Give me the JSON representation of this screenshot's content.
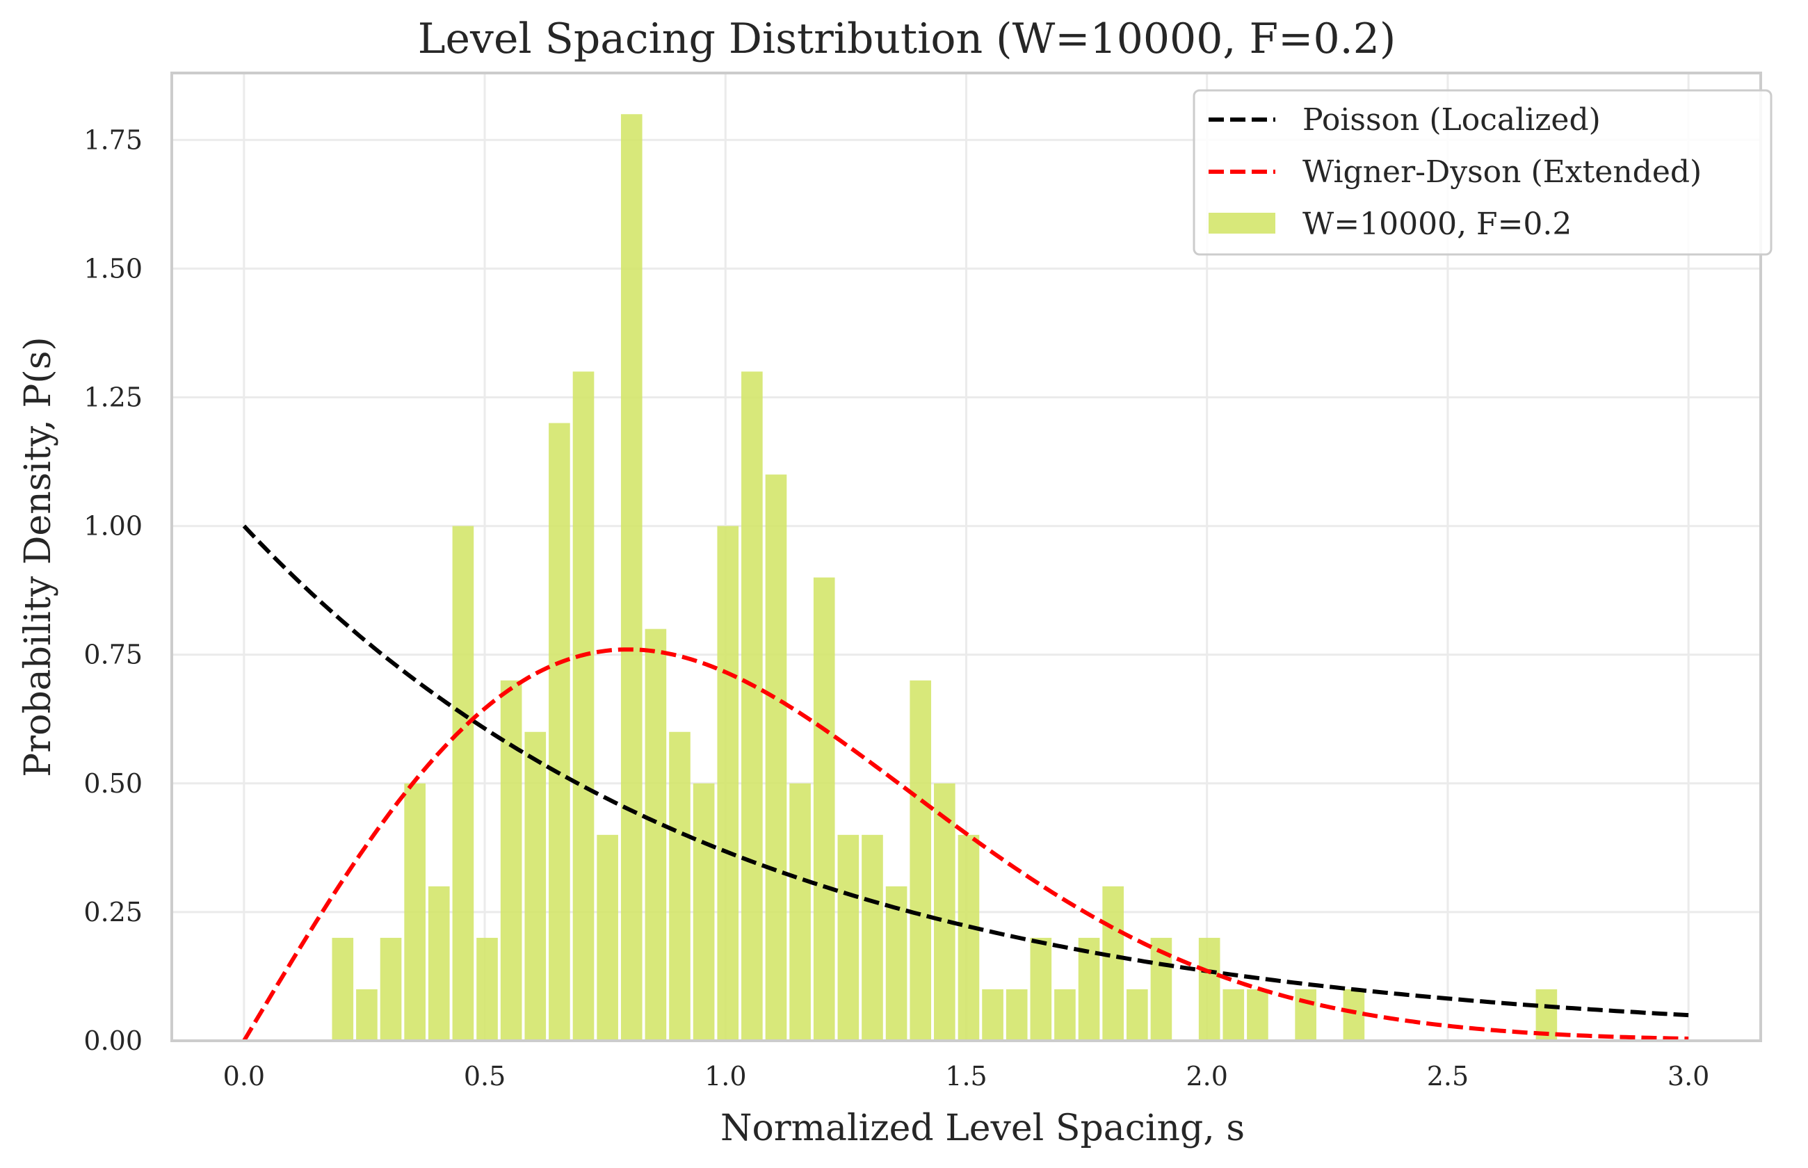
{
  "chart_data": {
    "type": "bar",
    "title": "Level Spacing Distribution (W=10000, F=0.2)",
    "xlabel": "Normalized Level Spacing, s",
    "ylabel": "Probability Density, P(s)",
    "xlim": [
      -0.15,
      3.15
    ],
    "ylim": [
      0,
      1.88
    ],
    "x_ticks": [
      0.0,
      0.5,
      1.0,
      1.5,
      2.0,
      2.5,
      3.0
    ],
    "x_tick_labels": [
      "0.0",
      "0.5",
      "1.0",
      "1.5",
      "2.0",
      "2.5",
      "3.0"
    ],
    "y_ticks": [
      0.0,
      0.25,
      0.5,
      0.75,
      1.0,
      1.25,
      1.5,
      1.75
    ],
    "y_tick_labels": [
      "0.00",
      "0.25",
      "0.50",
      "0.75",
      "1.00",
      "1.25",
      "1.50",
      "1.75"
    ],
    "grid": true,
    "legend_position": "top-right",
    "histogram": {
      "name": "W=10000, F=0.2",
      "color": "#d4e66c",
      "bin_width": 0.05,
      "bin_starts": [
        0.18,
        0.23,
        0.28,
        0.33,
        0.38,
        0.43,
        0.48,
        0.53,
        0.58,
        0.63,
        0.68,
        0.73,
        0.78,
        0.83,
        0.88,
        0.93,
        0.98,
        1.03,
        1.08,
        1.13,
        1.18,
        1.23,
        1.28,
        1.33,
        1.38,
        1.43,
        1.48,
        1.53,
        1.58,
        1.63,
        1.68,
        1.73,
        1.78,
        1.83,
        1.88,
        1.93,
        1.98,
        2.03,
        2.08,
        2.13,
        2.18,
        2.23,
        2.28,
        2.33,
        2.38,
        2.43,
        2.48,
        2.53,
        2.58,
        2.63,
        2.68
      ],
      "values": [
        0.2,
        0.1,
        0.2,
        0.5,
        0.3,
        1.0,
        0.2,
        0.7,
        0.6,
        1.2,
        1.3,
        0.4,
        1.8,
        0.8,
        0.6,
        0.5,
        1.0,
        1.3,
        1.1,
        0.5,
        0.9,
        0.4,
        0.4,
        0.3,
        0.7,
        0.5,
        0.4,
        0.1,
        0.1,
        0.2,
        0.1,
        0.2,
        0.3,
        0.1,
        0.2,
        0.0,
        0.2,
        0.1,
        0.1,
        0.0,
        0.1,
        0.0,
        0.1,
        0.0,
        0.0,
        0.0,
        0.0,
        0.0,
        0.0,
        0.0,
        0.1
      ]
    },
    "series": [
      {
        "name": "Poisson (Localized)",
        "color": "#000000",
        "style": "dashed",
        "formula": "exp(-s)",
        "x_range": [
          0,
          3
        ]
      },
      {
        "name": "Wigner-Dyson (Extended)",
        "color": "#ff0000",
        "style": "dashed",
        "formula": "(pi/2) s exp(-pi s^2 / 4)",
        "x_range": [
          0,
          3
        ]
      }
    ]
  }
}
